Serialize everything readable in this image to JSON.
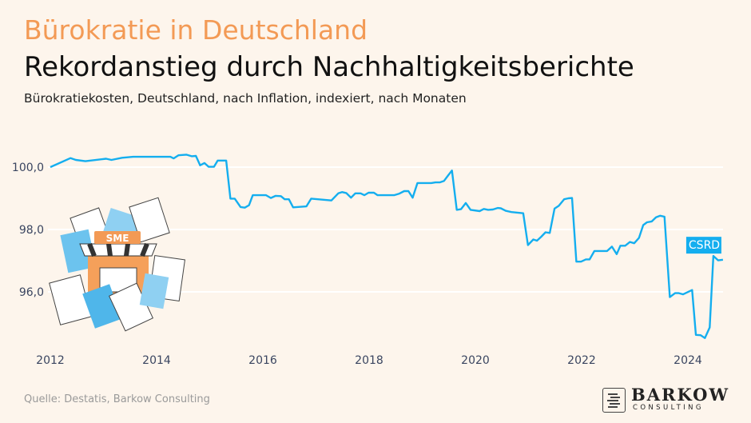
{
  "header": {
    "kicker": "Bürokratie in Deutschland",
    "title": "Rekordanstieg durch Nachhaltigkeitsberichte",
    "subtitle": "Bürokratiekosten, Deutschland, nach Inflation, indexiert, nach Monaten"
  },
  "chart_data": {
    "type": "line",
    "title": "Rekordanstieg durch Nachhaltigkeitsberichte",
    "subtitle": "Bürokratiekosten, Deutschland, nach Inflation, indexiert, nach Monaten",
    "xlabel": "",
    "ylabel": "",
    "xlim": [
      2012,
      2024.7
    ],
    "ylim": [
      94.3,
      100.6
    ],
    "x_ticks": [
      2012,
      2014,
      2016,
      2018,
      2020,
      2022,
      2024
    ],
    "x_tick_labels": [
      "2012",
      "2014",
      "2016",
      "2018",
      "2020",
      "2022",
      "2024"
    ],
    "y_ticks": [
      96,
      98,
      100
    ],
    "y_tick_labels": [
      "96,0",
      "98,0",
      "100,0"
    ],
    "grid": "horizontal",
    "line_color": "#14aeef",
    "annotation": {
      "text": "CSRD",
      "x": 2024.48,
      "y": 97.15
    },
    "series": [
      {
        "x": [
          2012.0,
          2012.38,
          2012.48,
          2012.66,
          2013.05,
          2013.15,
          2013.35,
          2013.56,
          2014.26,
          2014.32,
          2014.41,
          2014.56,
          2014.66,
          2014.74,
          2014.82,
          2014.9,
          2014.98,
          2015.08,
          2015.15,
          2015.31,
          2015.39,
          2015.47,
          2015.58,
          2015.66,
          2015.74,
          2015.81,
          2016.06,
          2016.15,
          2016.24,
          2016.34,
          2016.41,
          2016.49,
          2016.57,
          2016.82,
          2016.91,
          2017.29,
          2017.42,
          2017.49,
          2017.57,
          2017.66,
          2017.74,
          2017.84,
          2017.91,
          2017.99,
          2018.09,
          2018.16,
          2018.47,
          2018.57,
          2018.66,
          2018.74,
          2018.82,
          2018.91,
          2019.17,
          2019.25,
          2019.33,
          2019.41,
          2019.49,
          2019.56,
          2019.65,
          2019.73,
          2019.82,
          2019.91,
          2020.08,
          2020.16,
          2020.24,
          2020.33,
          2020.42,
          2020.48,
          2020.57,
          2020.68,
          2020.9,
          2020.99,
          2021.09,
          2021.16,
          2021.24,
          2021.32,
          2021.4,
          2021.49,
          2021.57,
          2021.67,
          2021.75,
          2021.82,
          2021.9,
          2021.99,
          2022.08,
          2022.15,
          2022.24,
          2022.48,
          2022.57,
          2022.66,
          2022.73,
          2022.82,
          2022.91,
          2022.99,
          2023.08,
          2023.16,
          2023.23,
          2023.32,
          2023.4,
          2023.48,
          2023.56,
          2023.66,
          2023.76,
          2023.83,
          2023.91,
          2024.08,
          2024.15,
          2024.24,
          2024.32,
          2024.41,
          2024.48,
          2024.57,
          2024.66
        ],
        "y": [
          100.0,
          100.29,
          100.23,
          100.19,
          100.27,
          100.23,
          100.3,
          100.33,
          100.33,
          100.28,
          100.38,
          100.4,
          100.35,
          100.36,
          100.06,
          100.13,
          100.01,
          100.01,
          100.21,
          100.21,
          98.99,
          98.99,
          98.72,
          98.7,
          98.78,
          99.1,
          99.1,
          99.01,
          99.08,
          99.07,
          98.97,
          98.97,
          98.71,
          98.74,
          98.99,
          98.93,
          99.16,
          99.2,
          99.17,
          99.02,
          99.16,
          99.16,
          99.1,
          99.18,
          99.18,
          99.1,
          99.1,
          99.15,
          99.23,
          99.23,
          99.02,
          99.49,
          99.49,
          99.51,
          99.51,
          99.56,
          99.74,
          99.89,
          98.63,
          98.65,
          98.85,
          98.63,
          98.59,
          98.66,
          98.63,
          98.64,
          98.69,
          98.68,
          98.6,
          98.56,
          98.52,
          97.5,
          97.68,
          97.64,
          97.77,
          97.91,
          97.89,
          98.67,
          98.76,
          98.97,
          99.0,
          99.01,
          96.97,
          96.97,
          97.04,
          97.04,
          97.31,
          97.31,
          97.45,
          97.21,
          97.48,
          97.48,
          97.6,
          97.56,
          97.73,
          98.14,
          98.23,
          98.26,
          98.39,
          98.44,
          98.41,
          95.83,
          95.96,
          95.96,
          95.92,
          96.06,
          94.62,
          94.61,
          94.52,
          94.86,
          97.15,
          97.01,
          97.03
        ]
      }
    ]
  },
  "illustration": {
    "label": "SME"
  },
  "footer": {
    "source": "Quelle: Destatis, Barkow Consulting",
    "logo_name": "BARKOW",
    "logo_sub": "CONSULTING"
  }
}
